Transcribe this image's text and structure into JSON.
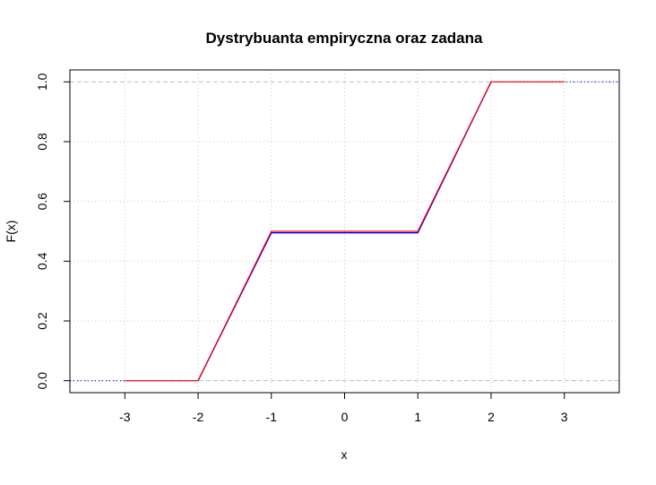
{
  "chart_data": {
    "type": "line",
    "title": "Dystrybuanta empiryczna oraz zadana",
    "xlabel": "x",
    "ylabel": "F(x)",
    "xlim": [
      -3.75,
      3.75
    ],
    "ylim": [
      -0.04,
      1.04
    ],
    "x_ticks": [
      -3,
      -2,
      -1,
      0,
      1,
      2,
      3
    ],
    "y_ticks": [
      0.0,
      0.2,
      0.4,
      0.6,
      0.8,
      1.0
    ],
    "x_tick_labels": [
      "-3",
      "-2",
      "-1",
      "0",
      "1",
      "2",
      "3"
    ],
    "y_tick_labels": [
      "0.0",
      "0.2",
      "0.4",
      "0.6",
      "0.8",
      "1.0"
    ],
    "grid": true,
    "reference_lines_y": [
      0,
      1
    ],
    "series": [
      {
        "color": "#0000ff",
        "style": "empirical-step",
        "x": [
          -3.75,
          -2.0,
          -1.0,
          1.0,
          2.0,
          3.75
        ],
        "y": [
          0.0,
          0.0,
          0.495,
          0.495,
          1.0,
          1.0
        ]
      },
      {
        "color": "#ff0000",
        "style": "line",
        "x": [
          -3.0,
          -2.0,
          -1.0,
          1.0,
          2.0,
          3.0
        ],
        "y": [
          0.0,
          0.0,
          0.5,
          0.5,
          1.0,
          1.0
        ]
      }
    ],
    "colors": {
      "grid": "#c8c8c8",
      "reference": "#bebebe",
      "frame": "#000000"
    }
  }
}
